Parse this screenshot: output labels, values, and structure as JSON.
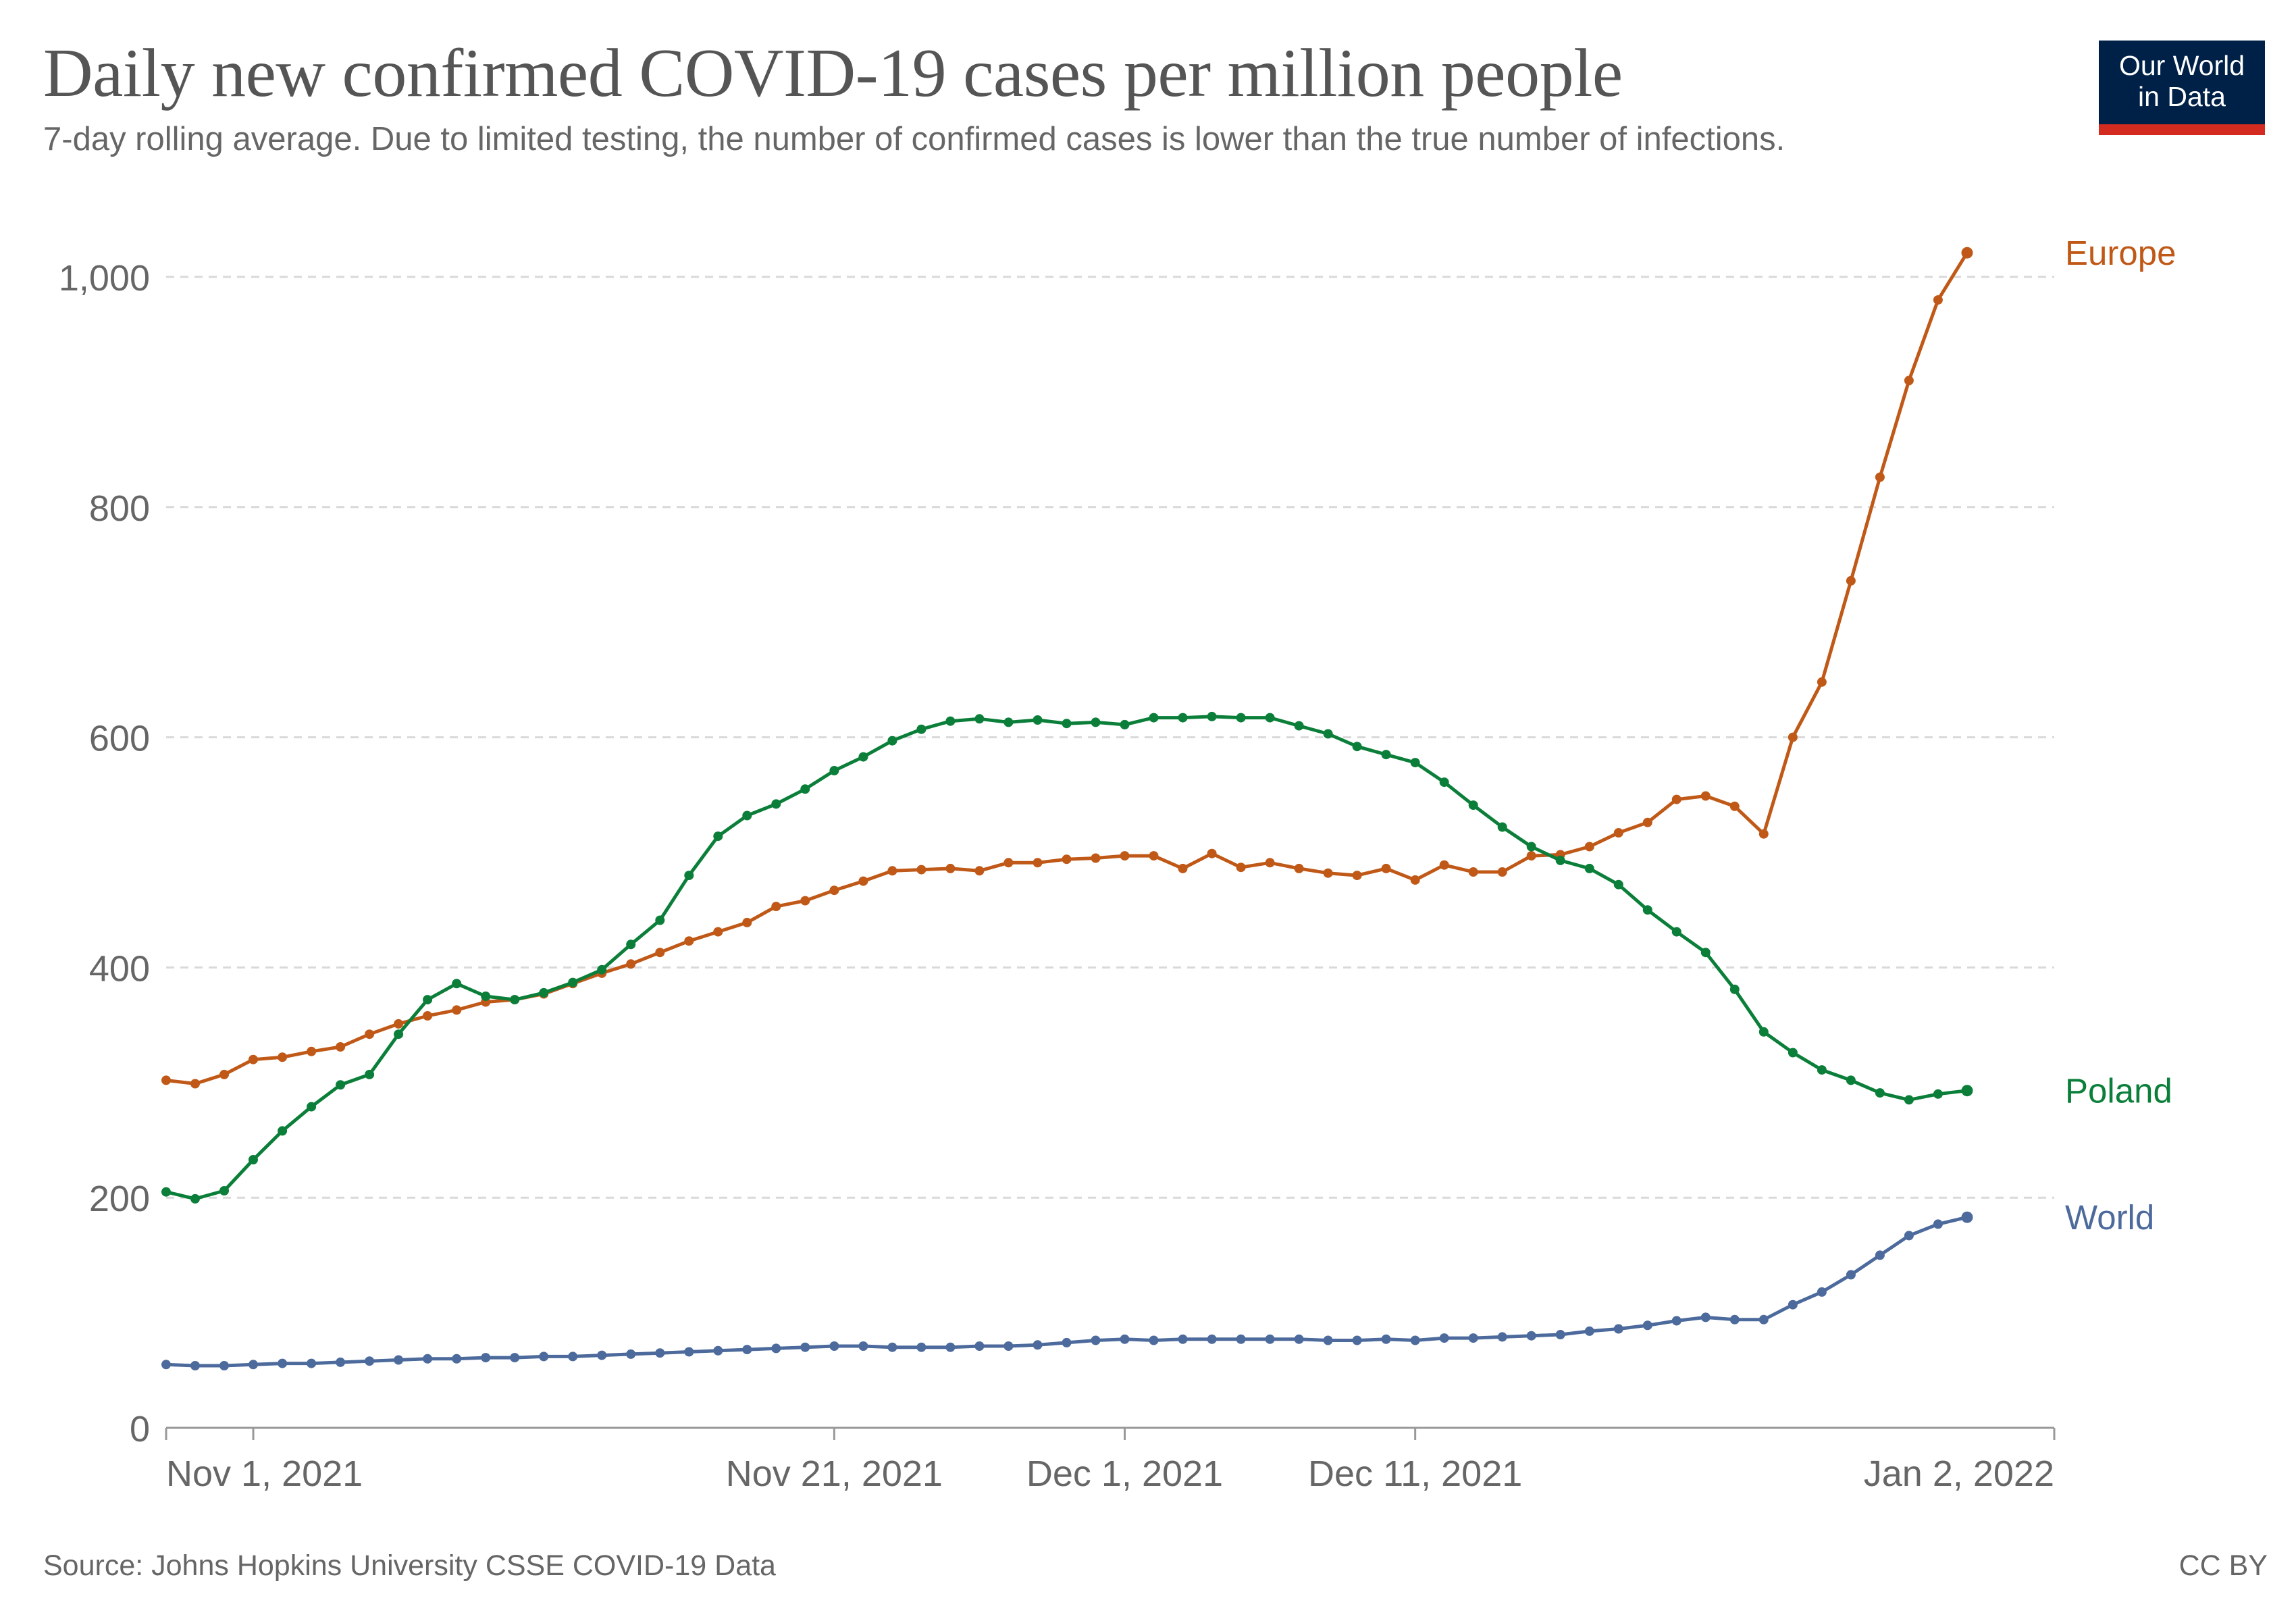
{
  "header": {
    "title": "Daily new confirmed COVID-19 cases per million people",
    "subtitle": "7-day rolling average. Due to limited testing, the number of confirmed cases is lower than the true number of infections."
  },
  "logo": {
    "line1": "Our World",
    "line2": "in Data"
  },
  "footer": {
    "source": "Source: Johns Hopkins University CSSE COVID-19 Data",
    "license": "CC BY"
  },
  "colors": {
    "Europe": "#c05917",
    "Poland": "#0b7f3a",
    "World": "#4c6a9c",
    "grid": "#d9d9d9",
    "axis": "#666666",
    "logo_background": "#002147",
    "logo_accent": "#d42b21"
  },
  "chart_data": {
    "type": "line",
    "x_start": "2021-10-29",
    "x_end": "2022-01-02",
    "ylim": [
      0,
      1000
    ],
    "yticks": [
      0,
      200,
      400,
      600,
      800,
      1000
    ],
    "ytick_labels": [
      "0",
      "200",
      "400",
      "600",
      "800",
      "1,000"
    ],
    "xticks": [
      "2021-11-01",
      "2021-11-21",
      "2021-12-01",
      "2021-12-11",
      "2022-01-02"
    ],
    "xtick_labels": [
      "Nov 1, 2021",
      "Nov 21, 2021",
      "Dec 1, 2021",
      "Dec 11, 2021",
      "Jan 2, 2022"
    ],
    "grid": "horizontal dashed",
    "legend": "end-of-line labels",
    "series": [
      {
        "name": "Europe",
        "values": [
          302,
          299,
          307,
          320,
          322,
          327,
          331,
          342,
          351,
          358,
          363,
          370,
          372,
          377,
          386,
          395,
          403,
          413,
          423,
          431,
          439,
          453,
          458,
          467,
          475,
          484,
          485,
          486,
          484,
          491,
          491,
          494,
          495,
          497,
          497,
          486,
          499,
          487,
          491,
          486,
          482,
          480,
          486,
          476,
          489,
          483,
          483,
          497,
          498,
          505,
          517,
          526,
          546,
          549,
          540,
          516,
          600,
          648,
          736,
          826,
          910,
          980,
          1021
        ]
      },
      {
        "name": "Poland",
        "values": [
          205,
          199,
          206,
          233,
          258,
          279,
          298,
          307,
          342,
          372,
          386,
          375,
          372,
          378,
          387,
          398,
          420,
          441,
          480,
          514,
          532,
          542,
          555,
          571,
          583,
          597,
          607,
          614,
          616,
          613,
          615,
          612,
          613,
          611,
          617,
          617,
          618,
          617,
          617,
          610,
          603,
          592,
          585,
          578,
          561,
          541,
          522,
          505,
          493,
          486,
          472,
          450,
          431,
          413,
          381,
          344,
          326,
          311,
          302,
          291,
          285,
          290,
          293
        ]
      },
      {
        "name": "World",
        "values": [
          55,
          54,
          54,
          55,
          56,
          56,
          57,
          58,
          59,
          60,
          60,
          61,
          61,
          62,
          62,
          63,
          64,
          65,
          66,
          67,
          68,
          69,
          70,
          71,
          71,
          70,
          70,
          70,
          71,
          71,
          72,
          74,
          76,
          77,
          76,
          77,
          77,
          77,
          77,
          77,
          76,
          76,
          77,
          76,
          78,
          78,
          79,
          80,
          81,
          84,
          86,
          89,
          93,
          96,
          94,
          94,
          107,
          118,
          133,
          150,
          167,
          177,
          183
        ]
      }
    ]
  }
}
